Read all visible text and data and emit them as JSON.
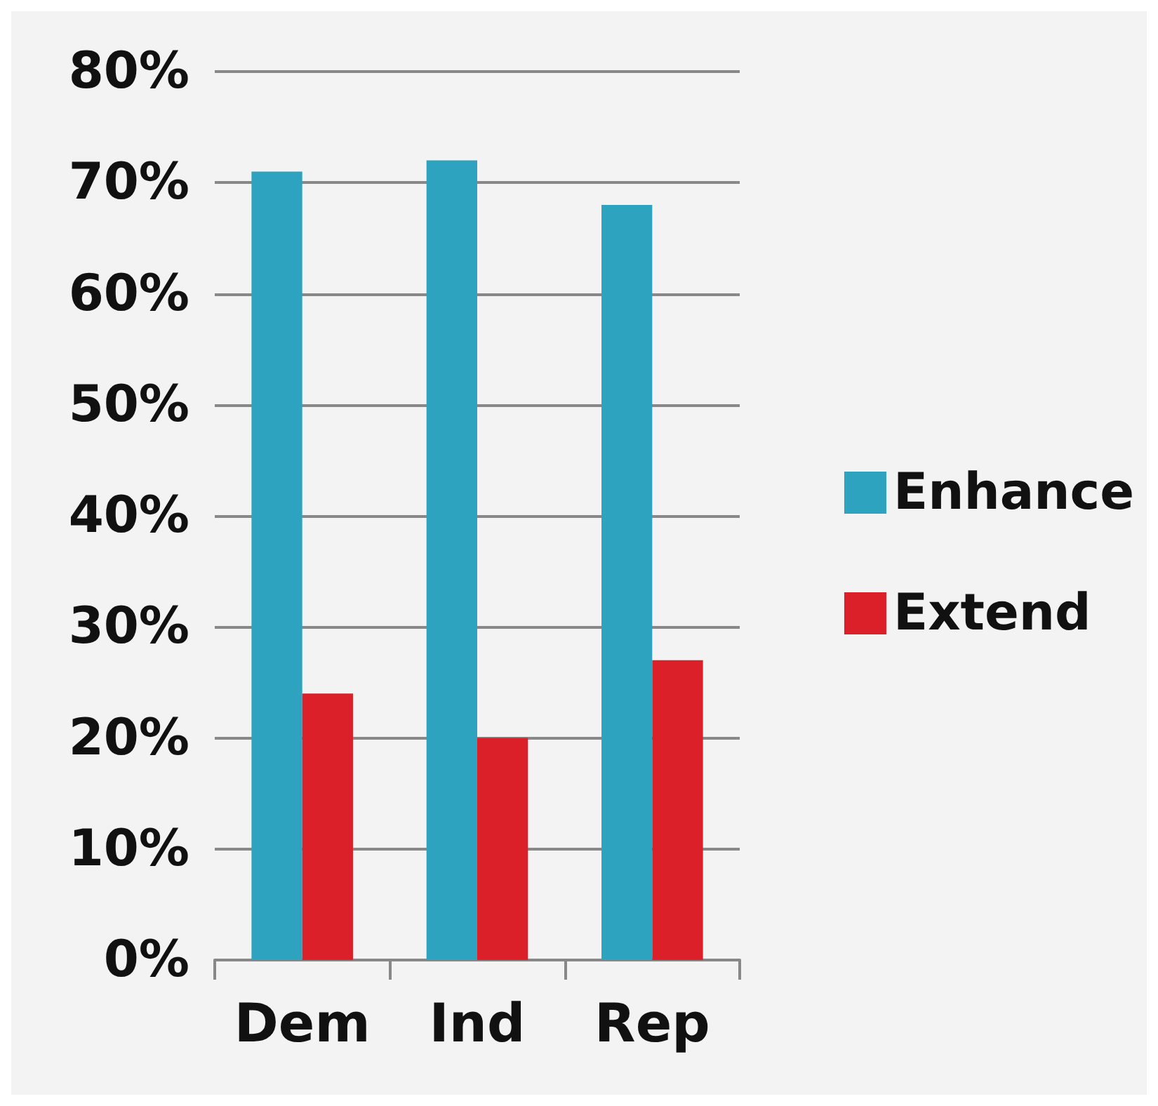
{
  "chart_data": {
    "type": "bar",
    "categories": [
      "Dem",
      "Ind",
      "Rep"
    ],
    "series": [
      {
        "name": "Enhance",
        "color": "#2ea3c0",
        "values": [
          71,
          72,
          68
        ]
      },
      {
        "name": "Extend",
        "color": "#dc2029",
        "values": [
          24,
          20,
          27
        ]
      }
    ],
    "ylim": [
      0,
      80
    ],
    "yticks": [
      {
        "value": 0,
        "label": "0%"
      },
      {
        "value": 10,
        "label": "10%"
      },
      {
        "value": 20,
        "label": "20%"
      },
      {
        "value": 30,
        "label": "30%"
      },
      {
        "value": 40,
        "label": "40%"
      },
      {
        "value": 50,
        "label": "50%"
      },
      {
        "value": 60,
        "label": "60%"
      },
      {
        "value": 70,
        "label": "70%"
      },
      {
        "value": 80,
        "label": "80%"
      }
    ],
    "grid": "y",
    "legend": "right"
  }
}
